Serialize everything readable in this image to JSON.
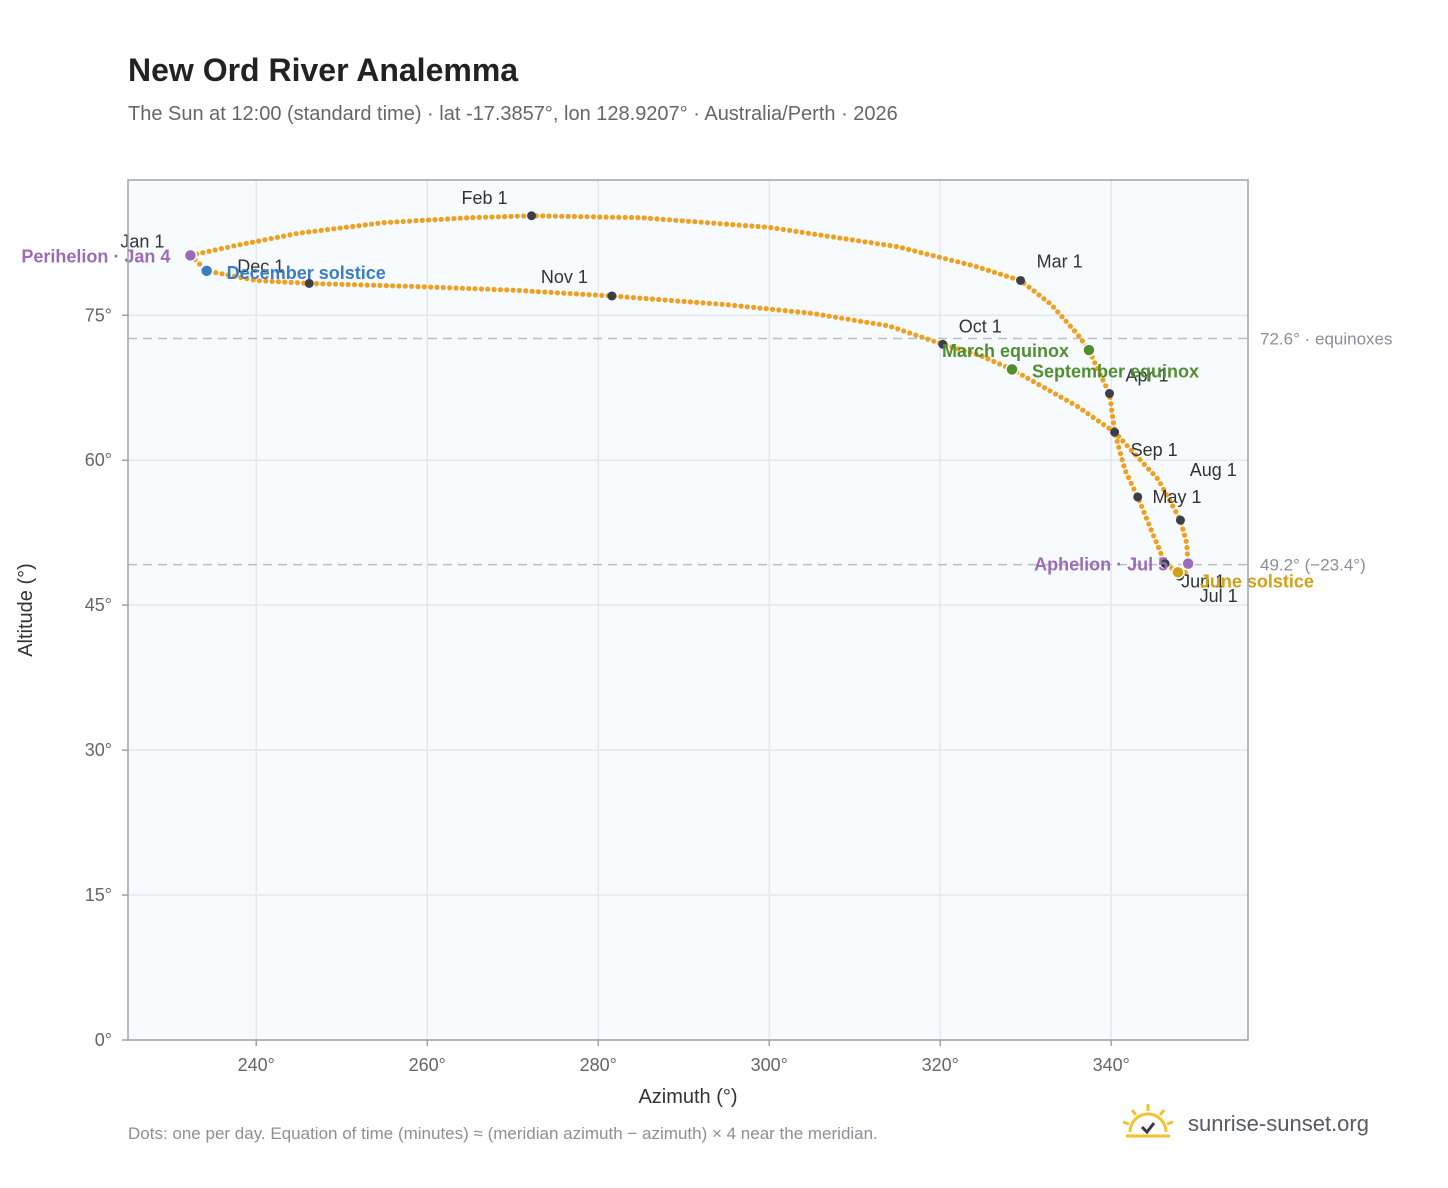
{
  "title": "New Ord River Analemma",
  "subtitle": "The Sun at 12:00 (standard time) · lat -17.3857°, lon 128.9207° · Australia/Perth · 2026",
  "footnote": "Dots: one per day. Equation of time (minutes) ≈ (meridian azimuth − azimuth) × 4 near the meridian.",
  "brand": {
    "name": "sunrise-sunset.org",
    "icon": "sunrise-logo-icon"
  },
  "colors": {
    "curve": "#f0a020",
    "month_marker": "#3a3f4a",
    "perihelion": "#9b6bb8",
    "december_solstice": "#3a7dc4",
    "equinox": "#4f8f2f",
    "june_solstice": "#d4a017",
    "plot_bg": "#f8fbfe",
    "frame": "#9aa3b0",
    "grid": "#e4e8ee",
    "ref_line": "#b8bdc6"
  },
  "chart_data": {
    "type": "scatter",
    "title": "New Ord River Analemma",
    "xlabel": "Azimuth (°)",
    "ylabel": "Altitude (°)",
    "xlim": [
      225,
      356
    ],
    "ylim": [
      0,
      89
    ],
    "xticks": [
      240,
      260,
      280,
      300,
      320,
      340
    ],
    "xtick_labels": [
      "240°",
      "260°",
      "280°",
      "300°",
      "320°",
      "340°"
    ],
    "yticks": [
      0,
      15,
      30,
      45,
      60,
      75
    ],
    "ytick_labels": [
      "0°",
      "15°",
      "30°",
      "45°",
      "60°",
      "75°"
    ],
    "grid": true,
    "path": [
      [
        232.3,
        81.2
      ],
      [
        238,
        82.3
      ],
      [
        245,
        83.5
      ],
      [
        255,
        84.6
      ],
      [
        265,
        85.1
      ],
      [
        272.2,
        85.3
      ],
      [
        285,
        85.1
      ],
      [
        300,
        84.1
      ],
      [
        315,
        82.1
      ],
      [
        324,
        80.1
      ],
      [
        329.4,
        78.6
      ],
      [
        333,
        76.1
      ],
      [
        336,
        73.1
      ],
      [
        337.4,
        71.4
      ],
      [
        338.7,
        68.9
      ],
      [
        339.8,
        66.9
      ],
      [
        340.4,
        62.9
      ],
      [
        341.6,
        59.0
      ],
      [
        343.1,
        56.2
      ],
      [
        346.3,
        49.3
      ],
      [
        347.8,
        48.4
      ],
      [
        348.0,
        48.0
      ],
      [
        348.6,
        48.2
      ],
      [
        349.0,
        49.3
      ],
      [
        348.8,
        51.5
      ],
      [
        348.1,
        53.8
      ],
      [
        345.5,
        58.0
      ],
      [
        340.4,
        62.9
      ],
      [
        336,
        65.6
      ],
      [
        332,
        67.6
      ],
      [
        328.4,
        69.4
      ],
      [
        324.5,
        70.9
      ],
      [
        320.3,
        72.0
      ],
      [
        314,
        73.9
      ],
      [
        305,
        75.2
      ],
      [
        295,
        76.1
      ],
      [
        281.6,
        77.0
      ],
      [
        270,
        77.6
      ],
      [
        258,
        78.0
      ],
      [
        246.2,
        78.3
      ],
      [
        240,
        78.6
      ],
      [
        234.2,
        79.6
      ],
      [
        232.3,
        81.2
      ]
    ],
    "reference_lines": [
      {
        "altitude": 72.6,
        "label": "72.6° · equinoxes"
      },
      {
        "altitude": 49.2,
        "label": "49.2° (−23.4°)"
      }
    ],
    "month_markers": [
      {
        "label": "Jan 1",
        "azimuth": 232.3,
        "altitude": 81.2
      },
      {
        "label": "Feb 1",
        "azimuth": 272.2,
        "altitude": 85.3
      },
      {
        "label": "Mar 1",
        "azimuth": 329.4,
        "altitude": 78.6
      },
      {
        "label": "Apr 1",
        "azimuth": 339.8,
        "altitude": 66.9
      },
      {
        "label": "May 1",
        "azimuth": 348.1,
        "altitude": 53.8
      },
      {
        "label": "Jun 1",
        "azimuth": 346.3,
        "altitude": 49.3
      },
      {
        "label": "Jul 1",
        "azimuth": 348.0,
        "altitude": 48.0
      },
      {
        "label": "Aug 1",
        "azimuth": 343.1,
        "altitude": 56.2
      },
      {
        "label": "Sep 1",
        "azimuth": 340.4,
        "altitude": 62.9
      },
      {
        "label": "Oct 1",
        "azimuth": 320.3,
        "altitude": 72.0
      },
      {
        "label": "Nov 1",
        "azimuth": 281.6,
        "altitude": 77.0
      },
      {
        "label": "Dec 1",
        "azimuth": 246.2,
        "altitude": 78.3
      }
    ],
    "events": [
      {
        "label": "Perihelion · Jan 4",
        "azimuth": 232.3,
        "altitude": 81.2,
        "color": "#9b6bb8"
      },
      {
        "label": "December solstice",
        "azimuth": 234.2,
        "altitude": 79.6,
        "color": "#3a7dc4"
      },
      {
        "label": "March equinox",
        "azimuth": 337.4,
        "altitude": 71.4,
        "color": "#4f8f2f"
      },
      {
        "label": "September equinox",
        "azimuth": 328.4,
        "altitude": 69.4,
        "color": "#4f8f2f"
      },
      {
        "label": "Aphelion · Jul 5",
        "azimuth": 349.0,
        "altitude": 49.3,
        "color": "#9b6bb8"
      },
      {
        "label": "June solstice",
        "azimuth": 347.8,
        "altitude": 48.4,
        "color": "#d4a017"
      }
    ]
  }
}
